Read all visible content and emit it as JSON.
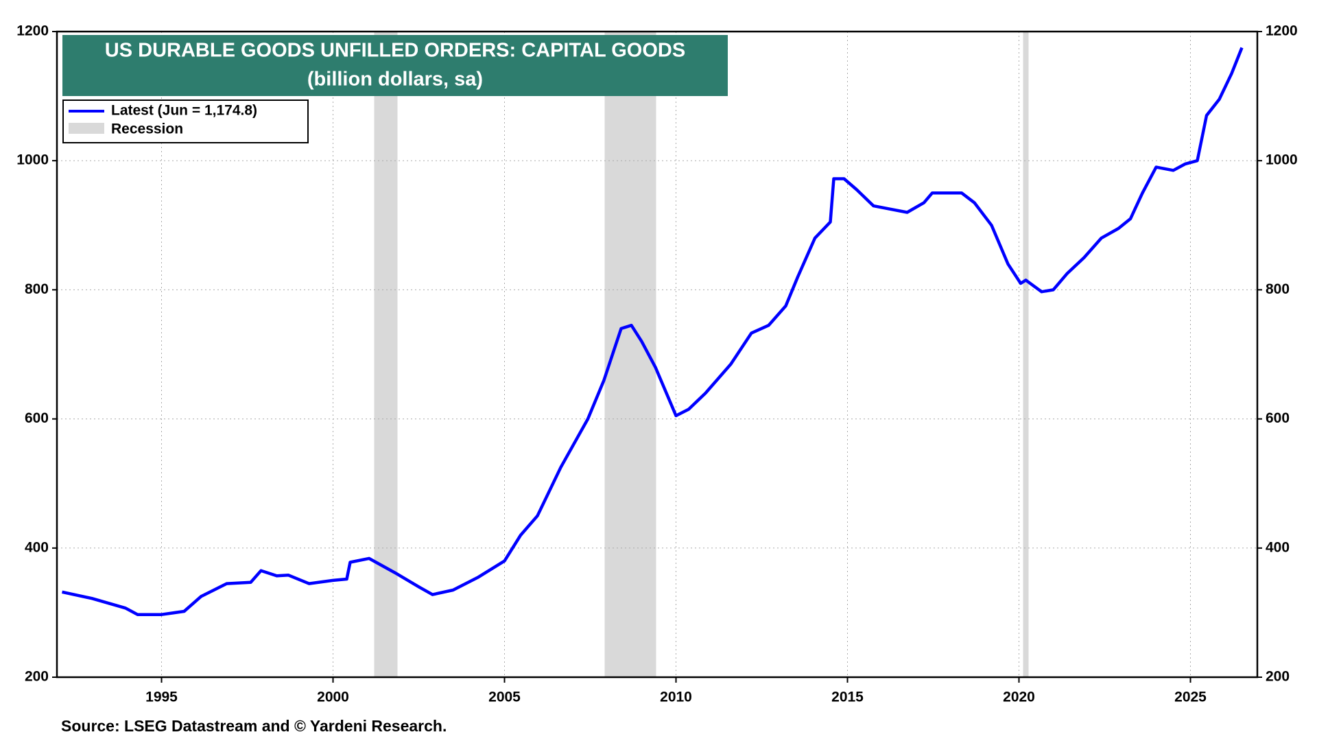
{
  "chart_data": {
    "type": "line",
    "title": "US DURABLE GOODS UNFILLED ORDERS: CAPITAL GOODS",
    "subtitle": "(billion dollars, sa)",
    "source": "Source: LSEG Datastream and © Yardeni Research.",
    "xlim": [
      1991.95,
      2026.95
    ],
    "xticks": [
      1995,
      2000,
      2005,
      2010,
      2015,
      2020,
      2025
    ],
    "ylim": [
      200,
      1200
    ],
    "yticks": [
      200,
      400,
      600,
      800,
      1000,
      1200
    ],
    "grid": true,
    "legend_position": "upper left",
    "recession_name": "Recession",
    "recession_color": "#d9d9d9",
    "recessions": [
      {
        "start": 2001.2,
        "end": 2001.88
      },
      {
        "start": 2007.92,
        "end": 2009.42
      },
      {
        "start": 2020.12,
        "end": 2020.28
      }
    ],
    "x": [
      1992.1,
      1992.97,
      1993.95,
      1994.3,
      1995.0,
      1995.66,
      1996.15,
      1996.9,
      1997.6,
      1997.9,
      1998.36,
      1998.7,
      1999.3,
      2000.0,
      2000.4,
      2000.5,
      2001.05,
      2001.8,
      2002.5,
      2002.9,
      2003.5,
      2004.24,
      2005.0,
      2005.47,
      2005.96,
      2006.64,
      2007.43,
      2007.9,
      2008.4,
      2008.7,
      2009.0,
      2009.4,
      2010.0,
      2010.37,
      2010.86,
      2011.6,
      2012.2,
      2012.7,
      2013.2,
      2013.55,
      2014.05,
      2014.5,
      2014.6,
      2014.9,
      2015.27,
      2015.76,
      2016.25,
      2016.74,
      2017.23,
      2017.47,
      2017.96,
      2018.33,
      2018.7,
      2019.2,
      2019.68,
      2020.05,
      2020.2,
      2020.66,
      2021.0,
      2021.4,
      2021.9,
      2022.4,
      2022.9,
      2023.25,
      2023.6,
      2024.0,
      2024.5,
      2024.85,
      2025.2,
      2025.47,
      2025.84,
      2026.2,
      2026.5
    ],
    "series": [
      {
        "name": "Latest (Jun = 1,174.8)",
        "color": "#0000ff",
        "values": [
          332,
          322,
          307,
          297,
          297,
          302,
          325,
          345,
          347,
          365,
          357,
          358,
          345,
          350,
          352,
          378,
          384,
          362,
          340,
          328,
          335,
          355,
          380,
          420,
          450,
          525,
          600,
          660,
          740,
          745,
          720,
          680,
          605,
          615,
          640,
          685,
          733,
          745,
          775,
          820,
          880,
          905,
          972,
          972,
          955,
          930,
          925,
          920,
          935,
          950,
          950,
          950,
          935,
          900,
          840,
          810,
          815,
          797,
          800,
          825,
          850,
          880,
          895,
          910,
          950,
          990,
          985,
          995,
          1000,
          1070,
          1095,
          1135,
          1175
        ]
      }
    ]
  }
}
